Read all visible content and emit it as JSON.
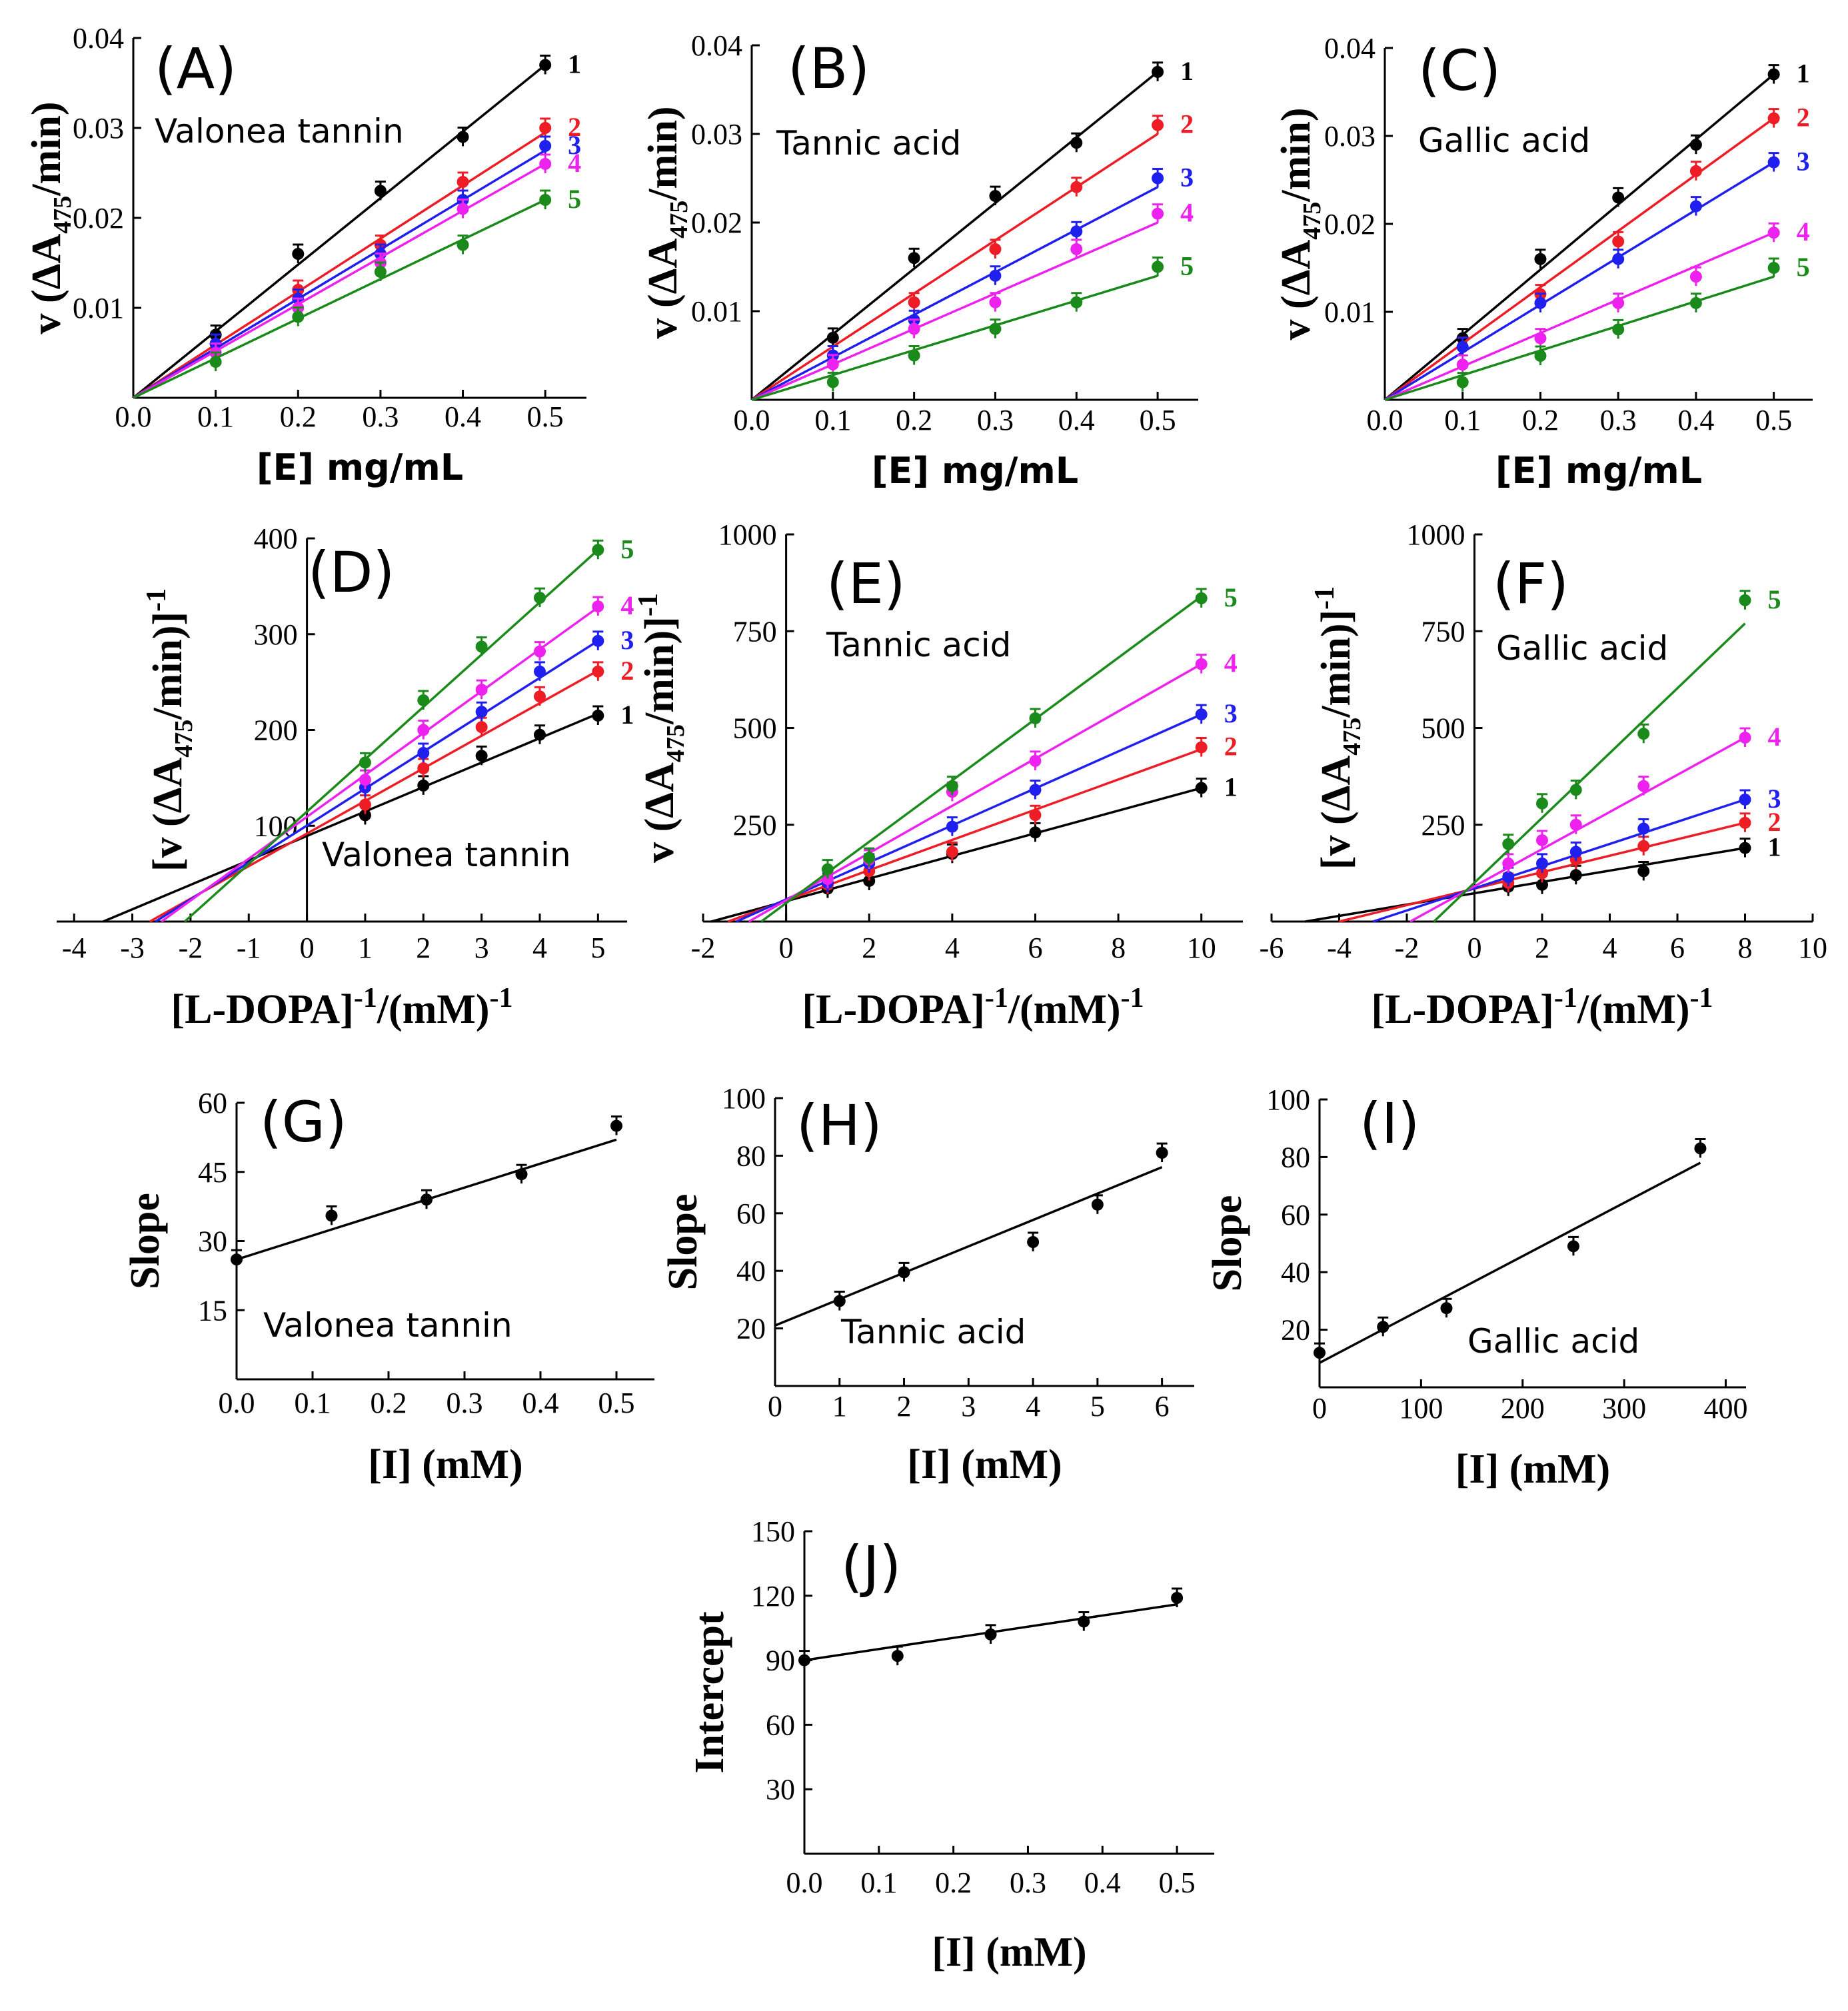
{
  "colors": {
    "1": "#000000",
    "2": "#ee1c25",
    "3": "#1f1ff0",
    "4": "#ee22ee",
    "5": "#1a8a1a"
  },
  "chart_data": [
    {
      "panel": "(A)",
      "type": "line",
      "annotation": "Valonea tannin",
      "xlabel": "[E] mg/mL",
      "ylabel_prefix": "v (ΔA",
      "ylabel_sub": "475",
      "ylabel_suffix": "/min)",
      "xlim": [
        0,
        0.55
      ],
      "ylim": [
        0,
        0.04
      ],
      "xticks": [
        "0.0",
        "0.1",
        "0.2",
        "0.3",
        "0.4",
        "0.5"
      ],
      "yticks": [
        "0.01",
        "0.02",
        "0.03",
        "0.04"
      ],
      "series": [
        {
          "name": "1",
          "x": [
            0.1,
            0.2,
            0.3,
            0.4,
            0.5
          ],
          "y": [
            0.007,
            0.016,
            0.023,
            0.029,
            0.037
          ],
          "fit": [
            0,
            0,
            0.5,
            0.037
          ]
        },
        {
          "name": "2",
          "x": [
            0.1,
            0.2,
            0.3,
            0.4,
            0.5
          ],
          "y": [
            0.006,
            0.012,
            0.017,
            0.024,
            0.03
          ],
          "fit": [
            0,
            0,
            0.5,
            0.0295
          ]
        },
        {
          "name": "3",
          "x": [
            0.1,
            0.2,
            0.3,
            0.4,
            0.5
          ],
          "y": [
            0.006,
            0.011,
            0.016,
            0.022,
            0.028
          ],
          "fit": [
            0,
            0,
            0.5,
            0.0275
          ]
        },
        {
          "name": "4",
          "x": [
            0.1,
            0.2,
            0.3,
            0.4,
            0.5
          ],
          "y": [
            0.005,
            0.01,
            0.015,
            0.021,
            0.026
          ],
          "fit": [
            0,
            0,
            0.5,
            0.026
          ]
        },
        {
          "name": "5",
          "x": [
            0.1,
            0.2,
            0.3,
            0.4,
            0.5
          ],
          "y": [
            0.004,
            0.009,
            0.014,
            0.017,
            0.022
          ],
          "fit": [
            0,
            0,
            0.5,
            0.022
          ]
        }
      ]
    },
    {
      "panel": "(B)",
      "type": "line",
      "annotation": "Tannic acid",
      "xlabel": "[E] mg/mL",
      "ylabel_prefix": "v (ΔA",
      "ylabel_sub": "475",
      "ylabel_suffix": "/min)",
      "xlim": [
        0,
        0.55
      ],
      "ylim": [
        0,
        0.04
      ],
      "xticks": [
        "0.0",
        "0.1",
        "0.2",
        "0.3",
        "0.4",
        "0.5"
      ],
      "yticks": [
        "0.01",
        "0.02",
        "0.03",
        "0.04"
      ],
      "series": [
        {
          "name": "1",
          "x": [
            0.1,
            0.2,
            0.3,
            0.4,
            0.5
          ],
          "y": [
            0.007,
            0.016,
            0.023,
            0.029,
            0.037
          ],
          "fit": [
            0,
            0,
            0.5,
            0.037
          ]
        },
        {
          "name": "2",
          "x": [
            0.1,
            0.2,
            0.3,
            0.4,
            0.5
          ],
          "y": [
            0.005,
            0.011,
            0.017,
            0.024,
            0.031
          ],
          "fit": [
            0,
            0,
            0.5,
            0.03
          ]
        },
        {
          "name": "3",
          "x": [
            0.1,
            0.2,
            0.3,
            0.4,
            0.5
          ],
          "y": [
            0.005,
            0.009,
            0.014,
            0.019,
            0.025
          ],
          "fit": [
            0,
            0,
            0.5,
            0.024
          ]
        },
        {
          "name": "4",
          "x": [
            0.1,
            0.2,
            0.3,
            0.4,
            0.5
          ],
          "y": [
            0.004,
            0.008,
            0.011,
            0.017,
            0.021
          ],
          "fit": [
            0,
            0,
            0.5,
            0.02
          ]
        },
        {
          "name": "5",
          "x": [
            0.1,
            0.2,
            0.3,
            0.4,
            0.5
          ],
          "y": [
            0.002,
            0.005,
            0.008,
            0.011,
            0.015
          ],
          "fit": [
            0,
            0,
            0.5,
            0.014
          ]
        }
      ]
    },
    {
      "panel": "(C)",
      "type": "line",
      "annotation": "Gallic acid",
      "xlabel": "[E] mg/mL",
      "ylabel_prefix": "v (ΔA",
      "ylabel_sub": "475",
      "ylabel_suffix": "/min)",
      "xlim": [
        0,
        0.55
      ],
      "ylim": [
        0,
        0.04
      ],
      "xticks": [
        "0.0",
        "0.1",
        "0.2",
        "0.3",
        "0.4",
        "0.5"
      ],
      "yticks": [
        "0.01",
        "0.02",
        "0.03",
        "0.04"
      ],
      "series": [
        {
          "name": "1",
          "x": [
            0.1,
            0.2,
            0.3,
            0.4,
            0.5
          ],
          "y": [
            0.007,
            0.016,
            0.023,
            0.029,
            0.037
          ],
          "fit": [
            0,
            0,
            0.5,
            0.037
          ]
        },
        {
          "name": "2",
          "x": [
            0.1,
            0.2,
            0.3,
            0.4,
            0.5
          ],
          "y": [
            0.006,
            0.012,
            0.018,
            0.026,
            0.032
          ],
          "fit": [
            0,
            0,
            0.5,
            0.032
          ]
        },
        {
          "name": "3",
          "x": [
            0.1,
            0.2,
            0.3,
            0.4,
            0.5
          ],
          "y": [
            0.006,
            0.011,
            0.016,
            0.022,
            0.027
          ],
          "fit": [
            0,
            0,
            0.5,
            0.027
          ]
        },
        {
          "name": "4",
          "x": [
            0.1,
            0.2,
            0.3,
            0.4,
            0.5
          ],
          "y": [
            0.004,
            0.007,
            0.011,
            0.014,
            0.019
          ],
          "fit": [
            0,
            0,
            0.5,
            0.019
          ]
        },
        {
          "name": "5",
          "x": [
            0.1,
            0.2,
            0.3,
            0.4,
            0.5
          ],
          "y": [
            0.002,
            0.005,
            0.008,
            0.011,
            0.015
          ],
          "fit": [
            0,
            0,
            0.5,
            0.014
          ]
        }
      ]
    },
    {
      "panel": "(D)",
      "type": "line",
      "annotation": "Valonea tannin",
      "xlabel": "[L-DOPA]",
      "xlabel_sup1": "-1",
      "xlabel_mid": "/(mM)",
      "xlabel_sup2": "-1",
      "ylabel_prefix": "[v (ΔA",
      "ylabel_sub": "475",
      "ylabel_suffix": "/min)]",
      "ylabel_sup": "-1",
      "xlim": [
        -4.3,
        5.5
      ],
      "ylim": [
        0,
        400
      ],
      "xticks": [
        "-4",
        "-3",
        "-2",
        "-1",
        "0",
        "1",
        "2",
        "3",
        "4",
        "5"
      ],
      "yticks": [
        "100",
        "200",
        "300",
        "400"
      ],
      "series": [
        {
          "name": "1",
          "x": [
            1,
            2,
            3,
            4,
            5
          ],
          "y": [
            111,
            142,
            173,
            195,
            215
          ],
          "fit": [
            -3.5,
            0,
            5,
            217
          ]
        },
        {
          "name": "2",
          "x": [
            1,
            2,
            3,
            4,
            5
          ],
          "y": [
            122,
            160,
            203,
            235,
            261
          ],
          "fit": [
            -2.7,
            0,
            5,
            262
          ]
        },
        {
          "name": "3",
          "x": [
            1,
            2,
            3,
            4,
            5
          ],
          "y": [
            140,
            176,
            219,
            261,
            293
          ],
          "fit": [
            -2.6,
            0,
            5,
            293
          ]
        },
        {
          "name": "4",
          "x": [
            1,
            2,
            3,
            4,
            5
          ],
          "y": [
            148,
            200,
            242,
            282,
            329
          ],
          "fit": [
            -2.5,
            0,
            5,
            328
          ]
        },
        {
          "name": "5",
          "x": [
            1,
            2,
            3,
            4,
            5
          ],
          "y": [
            166,
            231,
            287,
            338,
            388
          ],
          "fit": [
            -2.1,
            0,
            5,
            388
          ]
        }
      ]
    },
    {
      "panel": "(E)",
      "type": "line",
      "annotation": "Tannic acid",
      "xlabel": "[L-DOPA]",
      "xlabel_sup1": "-1",
      "xlabel_mid": "/(mM)",
      "xlabel_sup2": "-1",
      "ylabel_prefix": "v (ΔA",
      "ylabel_sub": "475",
      "ylabel_suffix": "/min)]",
      "ylabel_sup": "-1",
      "xlim": [
        -2,
        11
      ],
      "ylim": [
        0,
        1000
      ],
      "xticks": [
        "-2",
        "0",
        "2",
        "4",
        "6",
        "8",
        "10"
      ],
      "yticks": [
        "250",
        "500",
        "750",
        "1000"
      ],
      "series": [
        {
          "name": "1",
          "x": [
            1,
            2,
            4,
            6,
            10
          ],
          "y": [
            85,
            105,
            175,
            230,
            345
          ],
          "fit": [
            -1.8,
            0,
            10,
            345
          ]
        },
        {
          "name": "2",
          "x": [
            1,
            2,
            4,
            6,
            10
          ],
          "y": [
            95,
            130,
            180,
            275,
            450
          ],
          "fit": [
            -1.4,
            0,
            10,
            445
          ]
        },
        {
          "name": "3",
          "x": [
            1,
            2,
            4,
            6,
            10
          ],
          "y": [
            100,
            150,
            245,
            340,
            535
          ],
          "fit": [
            -1.2,
            0,
            10,
            535
          ]
        },
        {
          "name": "4",
          "x": [
            1,
            2,
            4,
            6,
            10
          ],
          "y": [
            110,
            160,
            335,
            415,
            665
          ],
          "fit": [
            -0.9,
            0,
            10,
            665
          ]
        },
        {
          "name": "5",
          "x": [
            1,
            2,
            4,
            6,
            10
          ],
          "y": [
            135,
            165,
            350,
            525,
            835
          ],
          "fit": [
            -0.6,
            0,
            10,
            840
          ]
        }
      ]
    },
    {
      "panel": "(F)",
      "type": "line",
      "annotation": "Gallic acid",
      "xlabel": "[L-DOPA]",
      "xlabel_sup1": "-1",
      "xlabel_mid": "/(mM)",
      "xlabel_sup2": "-1",
      "ylabel_prefix": "[v (ΔA",
      "ylabel_sub": "475",
      "ylabel_suffix": "/min)]",
      "ylabel_sup": "-1",
      "xlim": [
        -6,
        10
      ],
      "ylim": [
        0,
        1000
      ],
      "xticks": [
        "-6",
        "-4",
        "-2",
        "0",
        "2",
        "4",
        "6",
        "8",
        "10"
      ],
      "yticks": [
        "250",
        "500",
        "750",
        "1000"
      ],
      "series": [
        {
          "name": "1",
          "x": [
            1,
            2,
            3,
            5,
            8
          ],
          "y": [
            90,
            95,
            120,
            130,
            190
          ],
          "fit": [
            -5,
            0,
            8,
            190
          ]
        },
        {
          "name": "2",
          "x": [
            1,
            2,
            3,
            5,
            8
          ],
          "y": [
            100,
            125,
            160,
            195,
            255
          ],
          "fit": [
            -4,
            0,
            8,
            255
          ]
        },
        {
          "name": "3",
          "x": [
            1,
            2,
            3,
            5,
            8
          ],
          "y": [
            115,
            150,
            180,
            240,
            315
          ],
          "fit": [
            -3,
            0,
            8,
            315
          ]
        },
        {
          "name": "4",
          "x": [
            1,
            2,
            3,
            5,
            8
          ],
          "y": [
            150,
            210,
            250,
            350,
            475
          ],
          "fit": [
            -1.9,
            0,
            8,
            475
          ]
        },
        {
          "name": "5",
          "x": [
            1,
            2,
            3,
            5,
            8
          ],
          "y": [
            200,
            305,
            340,
            485,
            830
          ],
          "fit": [
            -1.2,
            0,
            8,
            770
          ]
        }
      ]
    },
    {
      "panel": "(G)",
      "type": "scatter",
      "annotation": "Valonea tannin",
      "xlabel": "[I] (mM)",
      "ylabel": "Slope",
      "xlim": [
        0,
        0.55
      ],
      "ylim": [
        0,
        60
      ],
      "xticks": [
        "0.0",
        "0.1",
        "0.2",
        "0.3",
        "0.4",
        "0.5"
      ],
      "yticks": [
        "15",
        "30",
        "45",
        "60"
      ],
      "series": [
        {
          "name": "slope",
          "x": [
            0,
            0.125,
            0.25,
            0.375,
            0.5
          ],
          "y": [
            26,
            35.5,
            39,
            44.5,
            55
          ],
          "fit": [
            0,
            26,
            0.5,
            52
          ]
        }
      ]
    },
    {
      "panel": "(H)",
      "type": "scatter",
      "annotation": "Tannic acid",
      "xlabel": "[I] (mM)",
      "ylabel": "Slope",
      "xlim": [
        0,
        6.5
      ],
      "ylim": [
        0,
        100
      ],
      "xticks": [
        "0",
        "1",
        "2",
        "3",
        "4",
        "5",
        "6"
      ],
      "yticks": [
        "20",
        "40",
        "60",
        "80",
        "100"
      ],
      "series": [
        {
          "name": "slope",
          "x": [
            1,
            2,
            4,
            5,
            6
          ],
          "y": [
            29.5,
            39.5,
            50,
            63,
            81
          ],
          "fit": [
            0,
            21,
            6,
            76
          ]
        }
      ]
    },
    {
      "panel": "(I)",
      "type": "scatter",
      "annotation": "Gallic acid",
      "xlabel": "[I] (mM)",
      "ylabel": "Slope",
      "xlim": [
        0,
        420
      ],
      "ylim": [
        0,
        100
      ],
      "xticks": [
        "0",
        "100",
        "200",
        "300",
        "400"
      ],
      "yticks": [
        "20",
        "40",
        "60",
        "80",
        "100"
      ],
      "series": [
        {
          "name": "slope",
          "x": [
            0,
            62.5,
            125,
            250,
            375
          ],
          "y": [
            12,
            21,
            27.5,
            49,
            83
          ],
          "fit": [
            0,
            8.5,
            375,
            78
          ]
        }
      ]
    },
    {
      "panel": "(J)",
      "type": "scatter",
      "annotation": "",
      "xlabel": "[I] (mM)",
      "ylabel": "Intercept",
      "xlim": [
        0,
        0.55
      ],
      "ylim": [
        0,
        150
      ],
      "xticks": [
        "0.0",
        "0.1",
        "0.2",
        "0.3",
        "0.4",
        "0.5"
      ],
      "yticks": [
        "30",
        "60",
        "90",
        "120",
        "150"
      ],
      "series": [
        {
          "name": "intercept",
          "x": [
            0,
            0.125,
            0.25,
            0.375,
            0.5
          ],
          "y": [
            90,
            92,
            102,
            108,
            119
          ],
          "fit": [
            0,
            90,
            0.5,
            116
          ]
        }
      ]
    }
  ]
}
